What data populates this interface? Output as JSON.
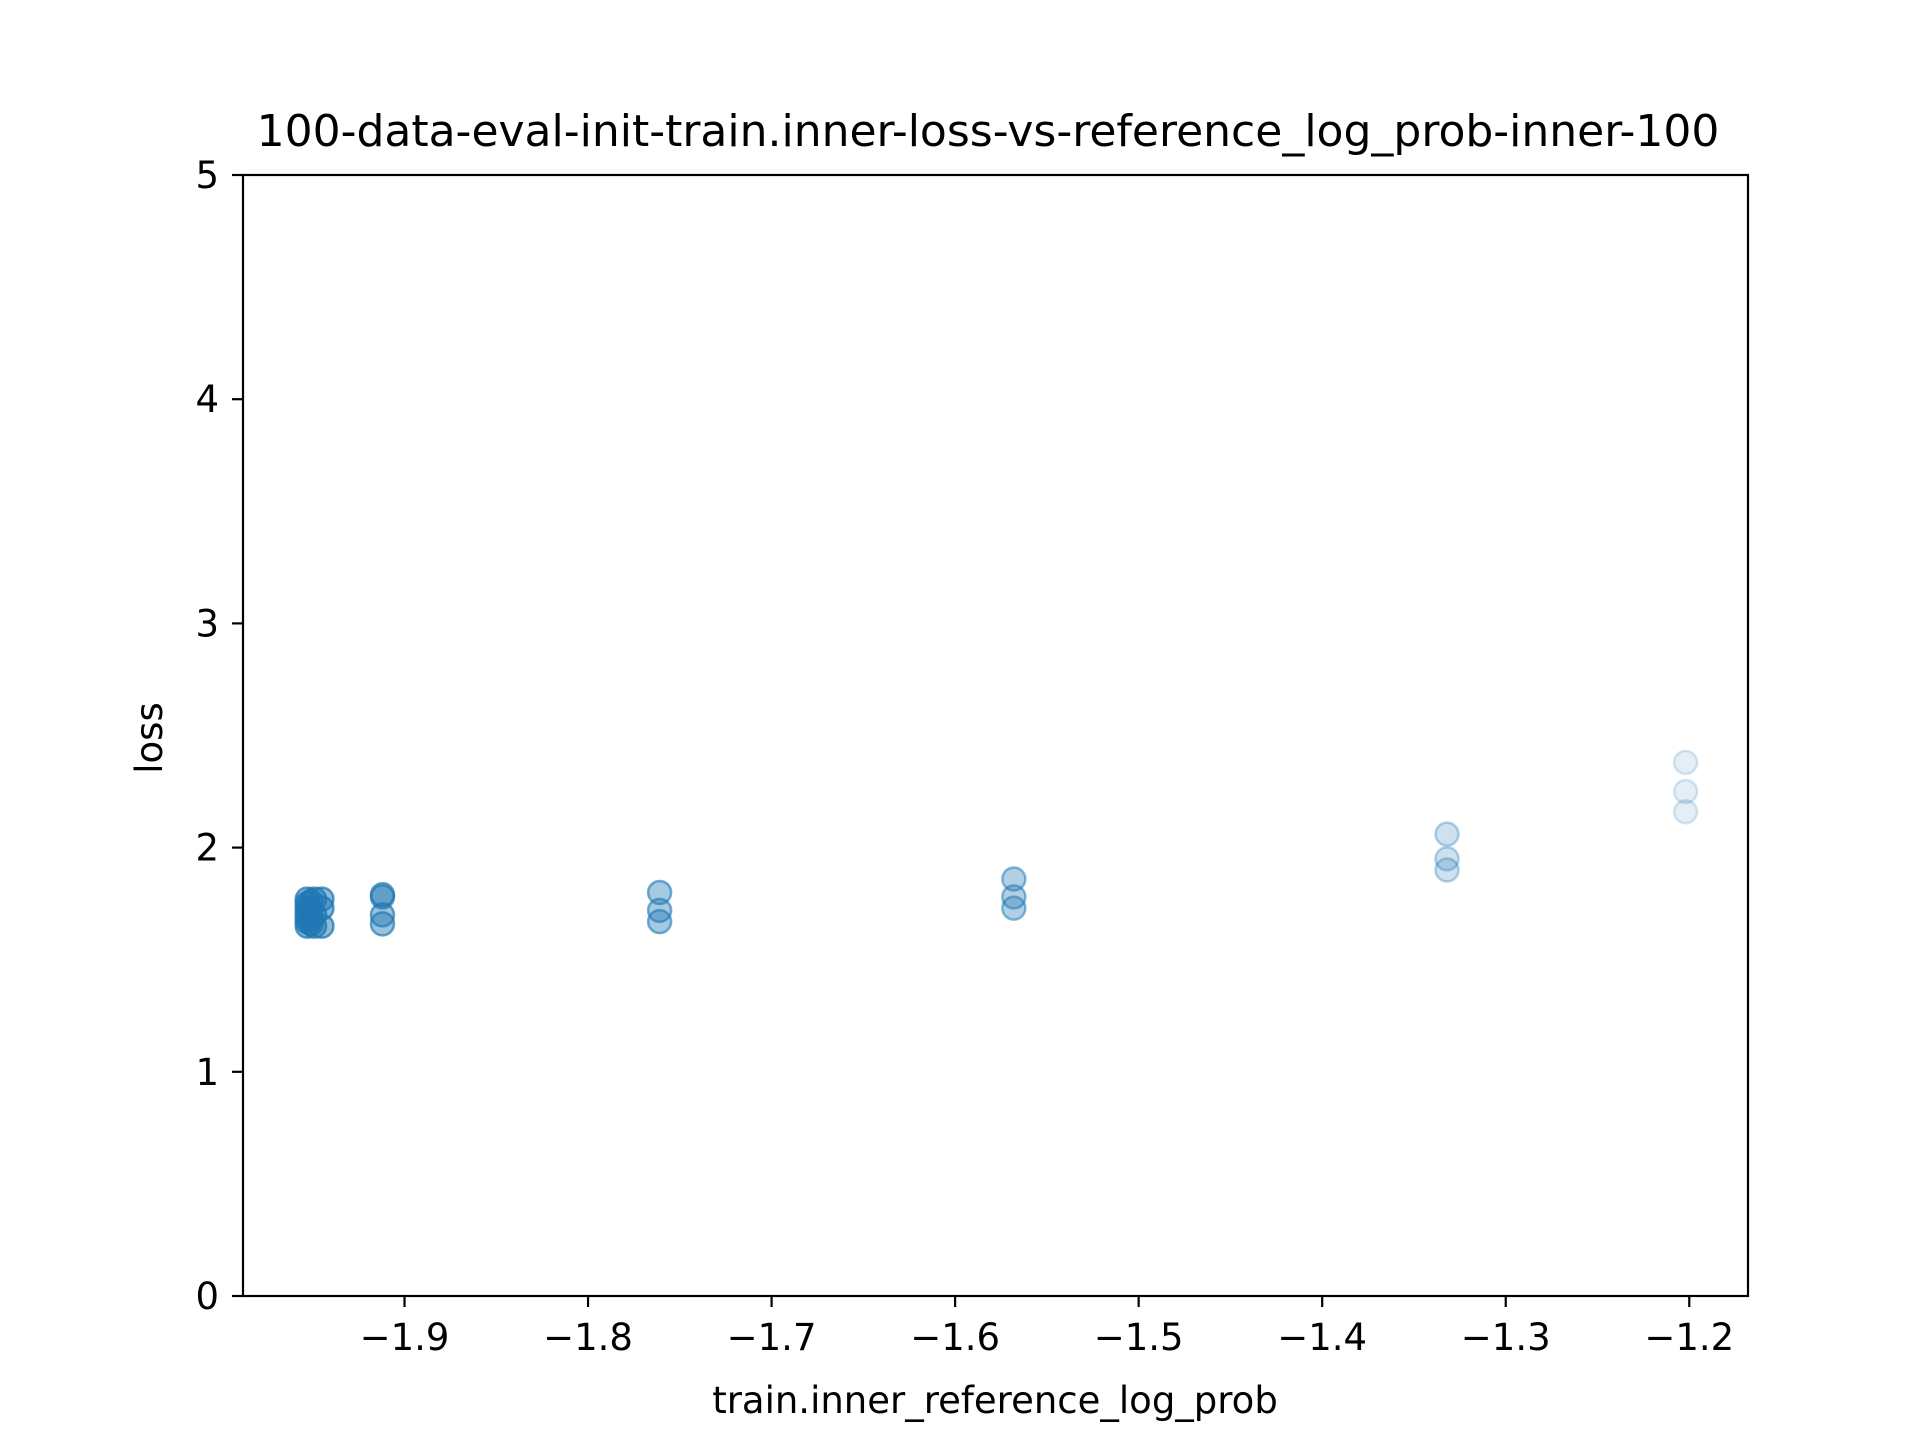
{
  "chart_data": {
    "type": "scatter",
    "title": "100-data-eval-init-train.inner-loss-vs-reference_log_prob-inner-100",
    "xlabel": "train.inner_reference_log_prob",
    "ylabel": "loss",
    "xlim": [
      -1.988,
      -1.168
    ],
    "ylim": [
      0,
      5
    ],
    "xticks": [
      -1.9,
      -1.8,
      -1.7,
      -1.6,
      -1.5,
      -1.4,
      -1.3,
      -1.2
    ],
    "xtick_labels": [
      "−1.9",
      "−1.8",
      "−1.7",
      "−1.6",
      "−1.5",
      "−1.4",
      "−1.3",
      "−1.2"
    ],
    "yticks": [
      0,
      1,
      2,
      3,
      4,
      5
    ],
    "ytick_labels": [
      "0",
      "1",
      "2",
      "3",
      "4",
      "5"
    ],
    "grid": false,
    "marker_color": "#1f77b4",
    "points": [
      {
        "x": -1.953,
        "y": 1.77,
        "alpha": 0.5
      },
      {
        "x": -1.953,
        "y": 1.75,
        "alpha": 0.5
      },
      {
        "x": -1.953,
        "y": 1.73,
        "alpha": 0.5
      },
      {
        "x": -1.953,
        "y": 1.71,
        "alpha": 0.5
      },
      {
        "x": -1.953,
        "y": 1.69,
        "alpha": 0.5
      },
      {
        "x": -1.953,
        "y": 1.67,
        "alpha": 0.5
      },
      {
        "x": -1.953,
        "y": 1.65,
        "alpha": 0.5
      },
      {
        "x": -1.951,
        "y": 1.76,
        "alpha": 0.5
      },
      {
        "x": -1.951,
        "y": 1.72,
        "alpha": 0.5
      },
      {
        "x": -1.951,
        "y": 1.68,
        "alpha": 0.5
      },
      {
        "x": -1.951,
        "y": 1.66,
        "alpha": 0.5
      },
      {
        "x": -1.949,
        "y": 1.77,
        "alpha": 0.5
      },
      {
        "x": -1.949,
        "y": 1.7,
        "alpha": 0.5
      },
      {
        "x": -1.949,
        "y": 1.65,
        "alpha": 0.5
      },
      {
        "x": -1.945,
        "y": 1.77,
        "alpha": 0.5
      },
      {
        "x": -1.945,
        "y": 1.73,
        "alpha": 0.5
      },
      {
        "x": -1.945,
        "y": 1.65,
        "alpha": 0.5
      },
      {
        "x": -1.912,
        "y": 1.79,
        "alpha": 0.45
      },
      {
        "x": -1.912,
        "y": 1.78,
        "alpha": 0.45
      },
      {
        "x": -1.912,
        "y": 1.7,
        "alpha": 0.45
      },
      {
        "x": -1.912,
        "y": 1.66,
        "alpha": 0.45
      },
      {
        "x": -1.761,
        "y": 1.8,
        "alpha": 0.4
      },
      {
        "x": -1.761,
        "y": 1.72,
        "alpha": 0.4
      },
      {
        "x": -1.761,
        "y": 1.67,
        "alpha": 0.4
      },
      {
        "x": -1.568,
        "y": 1.86,
        "alpha": 0.35
      },
      {
        "x": -1.568,
        "y": 1.78,
        "alpha": 0.35
      },
      {
        "x": -1.568,
        "y": 1.73,
        "alpha": 0.35
      },
      {
        "x": -1.332,
        "y": 2.06,
        "alpha": 0.22
      },
      {
        "x": -1.332,
        "y": 1.95,
        "alpha": 0.22
      },
      {
        "x": -1.332,
        "y": 1.9,
        "alpha": 0.22
      },
      {
        "x": -1.202,
        "y": 2.38,
        "alpha": 0.12
      },
      {
        "x": -1.202,
        "y": 2.25,
        "alpha": 0.12
      },
      {
        "x": -1.202,
        "y": 2.16,
        "alpha": 0.12
      }
    ]
  }
}
